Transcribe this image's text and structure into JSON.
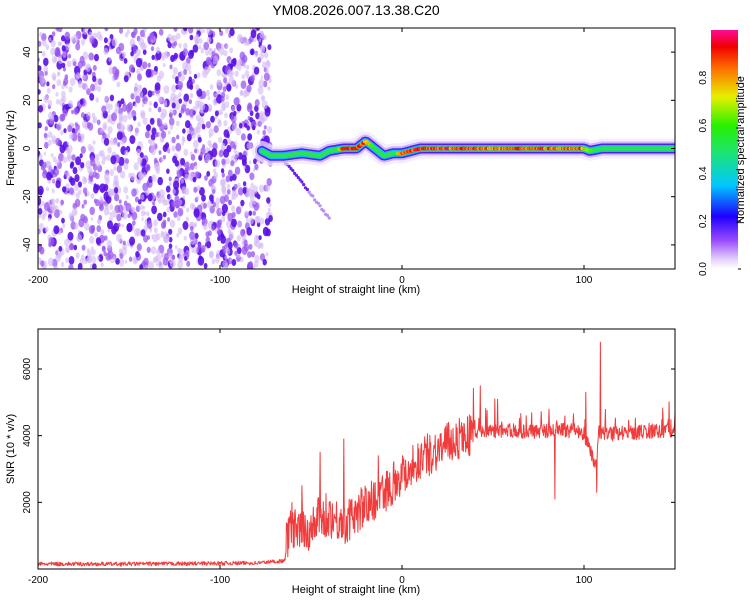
{
  "title": "YM08.2026.007.13.38.C20",
  "chart_data": [
    {
      "type": "heatmap",
      "title": "YM08.2026.007.13.38.C20",
      "xlabel": "Height of straight line (km)",
      "ylabel": "Frequency (Hz)",
      "xlim": [
        -200,
        150
      ],
      "ylim": [
        -50,
        50
      ],
      "x_ticks": [
        -200,
        -100,
        0,
        100
      ],
      "x_tick_labels": [
        "-200",
        "-100",
        "0",
        "100"
      ],
      "y_ticks": [
        -40,
        -20,
        0,
        20,
        40
      ],
      "y_tick_labels": [
        "-40",
        "-20",
        "0",
        "20",
        "40"
      ],
      "noise_region_x": [
        -200,
        -72
      ],
      "ridge": {
        "x": [
          -77,
          -72,
          -65,
          -55,
          -45,
          -40,
          -32,
          -25,
          -20,
          -15,
          -10,
          -5,
          0,
          10,
          30,
          50,
          70,
          90,
          100,
          103,
          110,
          130,
          150
        ],
        "freq_hz": [
          -1,
          -3,
          -3,
          -2,
          -3,
          -1,
          0,
          0,
          3,
          0,
          -3,
          -2,
          -2,
          0,
          0,
          0,
          0,
          0,
          0,
          -1,
          0,
          0,
          0
        ],
        "peak_amplitude": [
          0.2,
          0.3,
          0.45,
          0.5,
          0.4,
          0.35,
          0.95,
          0.9,
          0.95,
          0.5,
          0.3,
          0.45,
          0.9,
          1.0,
          0.95,
          0.9,
          0.95,
          0.9,
          0.9,
          0.6,
          0.55,
          0.55,
          0.55
        ]
      },
      "tail": {
        "x": [
          -65,
          -55,
          -45,
          -40
        ],
        "freq_hz": [
          -5,
          -14,
          -24,
          -29
        ]
      },
      "colorbar": {
        "label": "Normalized spectral amplitude",
        "range": [
          0,
          1
        ],
        "ticks": [
          "0.0",
          "0.2",
          "0.4",
          "0.6",
          "0.8"
        ]
      }
    },
    {
      "type": "line",
      "xlabel": "Height of straight line (km)",
      "ylabel": "SNR (10 * v/v)",
      "xlim": [
        -200,
        150
      ],
      "ylim": [
        0,
        7200
      ],
      "x_ticks": [
        -200,
        -100,
        0,
        100
      ],
      "x_tick_labels": [
        "-200",
        "-100",
        "0",
        "100"
      ],
      "y_ticks": [
        2000,
        4000,
        6000
      ],
      "y_tick_labels": [
        "2000",
        "4000",
        "6000"
      ],
      "series": [
        {
          "name": "SNR",
          "color": "#f03c3c",
          "x": [
            -200,
            -160,
            -120,
            -80,
            -64,
            -62,
            -58,
            -50,
            -45,
            -40,
            -35,
            -30,
            -25,
            -20,
            -15,
            -10,
            -5,
            0,
            10,
            20,
            30,
            35,
            40,
            45,
            50,
            60,
            70,
            80,
            90,
            95,
            100,
            103,
            105,
            106,
            107,
            108,
            110,
            120,
            130,
            140,
            150
          ],
          "y": [
            150,
            150,
            160,
            180,
            250,
            1300,
            1100,
            1200,
            1500,
            1600,
            1450,
            1400,
            1700,
            1900,
            2100,
            2300,
            2600,
            2850,
            3300,
            3600,
            3900,
            4000,
            4050,
            4100,
            4100,
            4150,
            4100,
            4150,
            4150,
            4150,
            4050,
            3600,
            3300,
            3200,
            3100,
            4100,
            4050,
            4050,
            4100,
            4150,
            4150
          ],
          "spikes": [
            {
              "x": -55,
              "y": 2500
            },
            {
              "x": -45,
              "y": 3500
            },
            {
              "x": -32,
              "y": 3900
            },
            {
              "x": -13,
              "y": 3400
            },
            {
              "x": 43,
              "y": 5500
            },
            {
              "x": 51,
              "y": 5100
            },
            {
              "x": 101,
              "y": 5300
            },
            {
              "x": 107,
              "y": 7100
            },
            {
              "x": 109,
              "y": 6800
            }
          ],
          "dips": [
            {
              "x": 107,
              "y": 2300
            },
            {
              "x": 84,
              "y": 2100
            }
          ]
        }
      ]
    }
  ]
}
